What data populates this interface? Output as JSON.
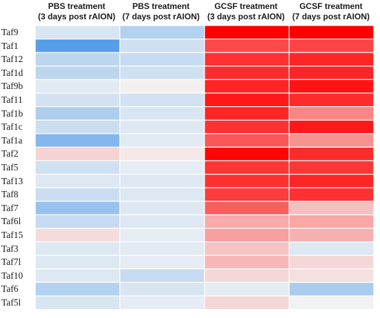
{
  "chart_data": {
    "type": "heatmap",
    "columns": [
      {
        "line1": "PBS treatment",
        "line2": "(3 days post rAION)"
      },
      {
        "line1": "PBS treatment",
        "line2": "(7 days post rAION)"
      },
      {
        "line1": "GCSF treatment",
        "line2": "(3 days post rAION)"
      },
      {
        "line1": "GCSF treatment",
        "line2": "(7 days post rAION)"
      }
    ],
    "rows": [
      "Taf9",
      "Taf1",
      "Taf12",
      "Taf1d",
      "Taf9b",
      "Taf11",
      "Taf1b",
      "Taf1c",
      "Taf1a",
      "Taf2",
      "Taf5",
      "Taf13",
      "Taf8",
      "Taf7",
      "Taf6l",
      "Taf15",
      "Taf3",
      "Taf7l",
      "Taf10",
      "Taf6",
      "Taf5l"
    ],
    "values": [
      [
        -0.15,
        -0.35,
        1.0,
        1.0
      ],
      [
        -0.85,
        -0.2,
        0.7,
        0.72
      ],
      [
        -0.3,
        -0.25,
        0.8,
        0.85
      ],
      [
        -0.3,
        -0.2,
        0.82,
        0.85
      ],
      [
        -0.1,
        0.02,
        0.85,
        0.92
      ],
      [
        -0.18,
        -0.18,
        0.9,
        0.82
      ],
      [
        -0.38,
        -0.15,
        0.85,
        0.45
      ],
      [
        -0.22,
        -0.12,
        0.8,
        0.9
      ],
      [
        -0.6,
        -0.1,
        0.65,
        0.4
      ],
      [
        0.14,
        0.05,
        0.98,
        0.82
      ],
      [
        -0.2,
        -0.08,
        0.78,
        0.78
      ],
      [
        -0.12,
        -0.12,
        0.8,
        0.85
      ],
      [
        -0.22,
        -0.12,
        0.75,
        0.8
      ],
      [
        -0.5,
        -0.12,
        0.62,
        0.22
      ],
      [
        -0.25,
        -0.12,
        0.3,
        0.32
      ],
      [
        0.1,
        -0.08,
        0.35,
        0.28
      ],
      [
        -0.12,
        -0.1,
        0.2,
        -0.12
      ],
      [
        -0.12,
        -0.08,
        0.25,
        0.12
      ],
      [
        -0.12,
        -0.25,
        0.12,
        0.08
      ],
      [
        -0.35,
        -0.15,
        -0.08,
        -0.4
      ],
      [
        -0.15,
        -0.08,
        0.12,
        -0.02
      ]
    ],
    "color_scale": {
      "negative": "#3b8fe8",
      "neutral": "#f4f4f4",
      "positive": "#ff0000",
      "range": [
        -1,
        1
      ]
    },
    "grid_lines": true
  }
}
